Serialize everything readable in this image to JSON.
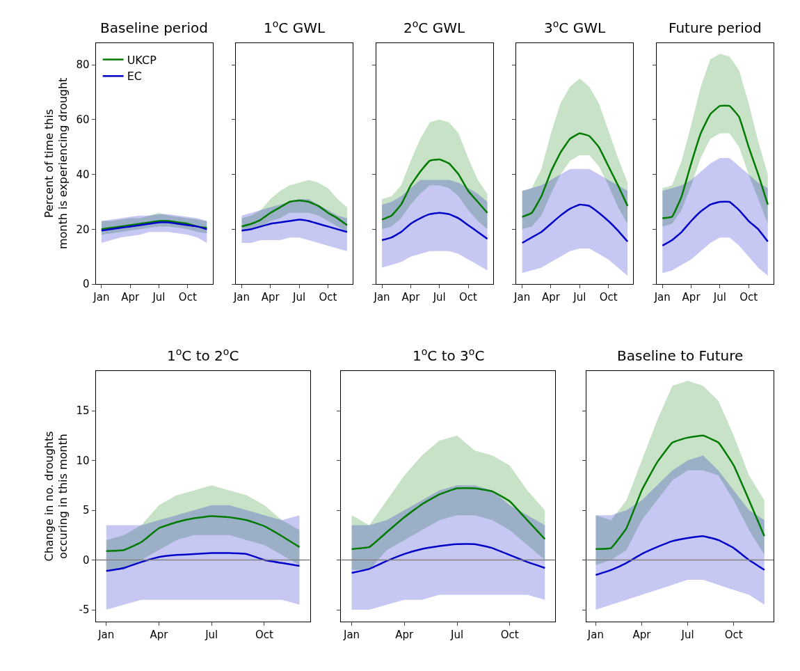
{
  "chart_data": [
    {
      "type": "line",
      "title": "Baseline period",
      "ylabel": "Percent of time this\nmonth is experiencing drought",
      "categories": [
        "Jan",
        null,
        null,
        "Apr",
        null,
        null,
        "Jul",
        null,
        null,
        "Oct",
        null,
        null
      ],
      "ylim": [
        0,
        88
      ],
      "yticks": [
        0,
        20,
        40,
        60,
        80
      ],
      "legend": "top left",
      "series": [
        {
          "name": "UKCP",
          "color": "#007a00",
          "values": [
            20,
            20.5,
            21,
            21.5,
            22,
            22.5,
            23,
            23,
            22.5,
            22,
            21,
            20.5
          ],
          "lower": [
            18,
            18.5,
            19,
            19.5,
            20,
            20.5,
            21,
            21,
            20.5,
            20,
            19,
            18.5
          ],
          "upper": [
            23,
            23,
            23.5,
            24,
            24,
            25,
            26,
            25,
            24.5,
            24,
            23.5,
            23
          ]
        },
        {
          "name": "EC",
          "color": "#0000c8",
          "values": [
            19.5,
            20,
            20.5,
            21,
            21.5,
            22,
            22.5,
            22.5,
            22,
            21.5,
            21,
            20
          ],
          "lower": [
            15,
            16,
            17,
            17.5,
            18,
            19,
            19,
            19,
            18.5,
            18,
            17,
            15
          ],
          "upper": [
            23,
            23.5,
            24,
            24.5,
            25,
            25,
            25.5,
            25.5,
            25,
            24.5,
            24,
            23
          ]
        }
      ]
    },
    {
      "type": "line",
      "title": "1$^{o}$C GWL",
      "categories": [
        "Jan",
        null,
        null,
        "Apr",
        null,
        null,
        "Jul",
        null,
        null,
        "Oct",
        null,
        null
      ],
      "ylim": [
        0,
        88
      ],
      "yticks": [
        0,
        20,
        40,
        60,
        80
      ],
      "tick_labels": "x",
      "series": [
        {
          "color": "#007a00",
          "values": [
            21,
            22,
            23.5,
            26,
            28,
            30,
            30.5,
            30,
            28.5,
            26,
            24,
            21.5
          ],
          "lower": [
            19,
            20,
            21,
            23,
            24,
            26,
            26,
            26,
            25,
            23,
            21,
            19
          ],
          "upper": [
            24,
            25,
            27,
            31,
            34,
            36,
            37,
            38,
            37,
            35,
            31,
            28
          ]
        },
        {
          "color": "#0000c8",
          "values": [
            19.5,
            20,
            21,
            22,
            22.5,
            23,
            23.5,
            23,
            22,
            21,
            20,
            19
          ],
          "lower": [
            15,
            15,
            16,
            16,
            16,
            17,
            17,
            16,
            15,
            14,
            13,
            12
          ],
          "upper": [
            25,
            26,
            27,
            28,
            29,
            30,
            31,
            31,
            29,
            27,
            25,
            24
          ]
        }
      ]
    },
    {
      "type": "line",
      "title": "2$^{o}$C GWL",
      "categories": [
        "Jan",
        null,
        null,
        "Apr",
        null,
        null,
        "Jul",
        null,
        null,
        "Oct",
        null,
        null
      ],
      "ylim": [
        0,
        88
      ],
      "yticks": [
        0,
        20,
        40,
        60,
        80
      ],
      "tick_labels": "x",
      "series": [
        {
          "color": "#007a00",
          "values": [
            23.5,
            25,
            29,
            36,
            41,
            45,
            45.5,
            44,
            40,
            34,
            30,
            26
          ],
          "lower": [
            20,
            21,
            24,
            29,
            33,
            36,
            36,
            35,
            32,
            27,
            23,
            20
          ],
          "upper": [
            31,
            32,
            36,
            45,
            53,
            59,
            60,
            59,
            55,
            46,
            38,
            33
          ]
        },
        {
          "color": "#0000c8",
          "values": [
            16,
            17,
            19,
            22,
            24,
            25.5,
            26,
            25.5,
            24,
            21.5,
            19,
            16.5
          ],
          "lower": [
            6,
            7,
            8,
            10,
            11,
            12,
            12,
            12,
            11,
            9,
            7,
            5
          ],
          "upper": [
            29,
            30,
            32,
            35,
            38,
            38,
            38,
            38,
            37,
            35,
            33,
            30
          ]
        }
      ]
    },
    {
      "type": "line",
      "title": "3$^{o}$C GWL",
      "categories": [
        "Jan",
        null,
        null,
        "Apr",
        null,
        null,
        "Jul",
        null,
        null,
        "Oct",
        null,
        null
      ],
      "ylim": [
        0,
        88
      ],
      "yticks": [
        0,
        20,
        40,
        60,
        80
      ],
      "tick_labels": "x",
      "series": [
        {
          "color": "#007a00",
          "values": [
            24.5,
            26,
            32,
            41,
            48,
            53,
            55,
            54,
            50,
            43,
            36,
            28.5
          ],
          "lower": [
            20,
            21,
            25,
            33,
            40,
            45,
            47,
            47,
            43,
            36,
            28,
            22
          ],
          "upper": [
            34,
            35,
            42,
            55,
            66,
            72,
            75,
            72,
            66,
            56,
            46,
            37
          ]
        },
        {
          "color": "#0000c8",
          "values": [
            15,
            17,
            19,
            22,
            25,
            27.5,
            29,
            28.5,
            26,
            23,
            19.5,
            15.5
          ],
          "lower": [
            4,
            5,
            6,
            8,
            10,
            12,
            13,
            13,
            11,
            9,
            6,
            3
          ],
          "upper": [
            34,
            35,
            36,
            38,
            40,
            42,
            42,
            42,
            40,
            38,
            36,
            34
          ]
        }
      ]
    },
    {
      "type": "line",
      "title": "Future period",
      "categories": [
        "Jan",
        null,
        null,
        "Apr",
        null,
        null,
        "Jul",
        null,
        null,
        "Oct",
        null,
        null
      ],
      "ylim": [
        0,
        88
      ],
      "yticks": [
        0,
        20,
        40,
        60,
        80
      ],
      "tick_labels": "x",
      "series": [
        {
          "color": "#007a00",
          "values": [
            24,
            24.5,
            32,
            44,
            55,
            62,
            65,
            65,
            61,
            50,
            40,
            29
          ],
          "lower": [
            21,
            22,
            27,
            36,
            46,
            53,
            55,
            55,
            50,
            40,
            31,
            22
          ],
          "upper": [
            35,
            36,
            45,
            58,
            72,
            82,
            84,
            83,
            78,
            66,
            52,
            40
          ]
        },
        {
          "color": "#0000c8",
          "values": [
            14,
            16,
            19,
            23,
            26.5,
            29,
            30,
            30,
            27,
            23,
            20,
            15.5
          ],
          "lower": [
            4,
            5,
            7,
            9,
            12,
            15,
            17,
            17,
            14,
            10,
            6,
            3
          ],
          "upper": [
            34,
            35,
            36,
            38,
            41,
            44,
            46,
            46,
            43,
            40,
            37,
            35
          ]
        }
      ]
    },
    {
      "type": "line",
      "title": "1$^{o}$C to 2$^{o}$C",
      "ylabel": "Change in no. droughts\noccuring in this month",
      "categories": [
        "Jan",
        null,
        null,
        "Apr",
        null,
        null,
        "Jul",
        null,
        null,
        "Oct",
        null,
        null
      ],
      "ylim": [
        -6.2,
        19
      ],
      "yticks": [
        -5,
        0,
        5,
        10,
        15
      ],
      "ref_lines": [
        {
          "axis": "y",
          "value": 0,
          "color": "#808080"
        }
      ],
      "series": [
        {
          "color": "#007a00",
          "values": [
            0.9,
            1,
            1.8,
            3.2,
            3.8,
            4.2,
            4.4,
            4.3,
            4,
            3.4,
            2.4,
            1.3
          ],
          "lower": [
            -1,
            -1,
            0,
            1,
            2,
            2.5,
            2.5,
            2.5,
            2,
            1.5,
            0.5,
            -0.5
          ],
          "upper": [
            2,
            2.5,
            3.5,
            5.5,
            6.5,
            7,
            7.5,
            7,
            6.5,
            5.5,
            4,
            3
          ]
        },
        {
          "color": "#0000c8",
          "values": [
            -1.1,
            -0.8,
            -0.2,
            0.3,
            0.5,
            0.6,
            0.7,
            0.7,
            0.6,
            0,
            -0.3,
            -0.6
          ],
          "lower": [
            -5,
            -4.5,
            -4,
            -4,
            -4,
            -4,
            -4,
            -4,
            -4,
            -4,
            -4,
            -4.5
          ],
          "upper": [
            3.5,
            3.5,
            3.5,
            4,
            4.5,
            5,
            5.5,
            5.5,
            5,
            4.5,
            4,
            4.5
          ]
        }
      ]
    },
    {
      "type": "line",
      "title": "1$^{o}$C to 3$^{o}$C",
      "categories": [
        "Jan",
        null,
        null,
        "Apr",
        null,
        null,
        "Jul",
        null,
        null,
        "Oct",
        null,
        null
      ],
      "ylim": [
        -6.2,
        19
      ],
      "yticks": [
        -5,
        0,
        5,
        10,
        15
      ],
      "tick_labels": "x",
      "ref_lines": [
        {
          "axis": "y",
          "value": 0,
          "color": "#808080"
        }
      ],
      "series": [
        {
          "color": "#007a00",
          "values": [
            1.1,
            1.3,
            2.8,
            4.3,
            5.6,
            6.6,
            7.2,
            7.2,
            6.9,
            5.9,
            4,
            2.1
          ],
          "lower": [
            -1,
            -1,
            1,
            2,
            3,
            4,
            4.5,
            4.5,
            4,
            3,
            1.5,
            0
          ],
          "upper": [
            4.5,
            3.5,
            6,
            8.5,
            10.5,
            12,
            12.5,
            11,
            10.5,
            9.5,
            7,
            5
          ]
        },
        {
          "color": "#0000c8",
          "values": [
            -1.3,
            -0.9,
            -0.1,
            0.6,
            1.1,
            1.4,
            1.6,
            1.6,
            1.2,
            0.5,
            -0.2,
            -0.8
          ],
          "lower": [
            -5,
            -5,
            -4.5,
            -4,
            -4,
            -3.5,
            -3.5,
            -3.5,
            -3.5,
            -3.5,
            -3.5,
            -4
          ],
          "upper": [
            3.5,
            3.5,
            4,
            5,
            6,
            7,
            7.5,
            7.5,
            7,
            5.5,
            4.5,
            3.5
          ]
        }
      ]
    },
    {
      "type": "line",
      "title": "Baseline to Future",
      "categories": [
        "Jan",
        null,
        null,
        "Apr",
        null,
        null,
        "Jul",
        null,
        null,
        "Oct",
        null,
        null
      ],
      "ylim": [
        -6.2,
        19
      ],
      "yticks": [
        -5,
        0,
        5,
        10,
        15
      ],
      "tick_labels": "x",
      "ref_lines": [
        {
          "axis": "y",
          "value": 0,
          "color": "#808080"
        }
      ],
      "series": [
        {
          "color": "#007a00",
          "values": [
            1.1,
            1.2,
            3.2,
            7,
            9.8,
            11.8,
            12.3,
            12.5,
            11.8,
            9.5,
            6,
            2.4
          ],
          "lower": [
            -0.5,
            0,
            1,
            4,
            6,
            8,
            9,
            9,
            8.5,
            6,
            3,
            0.5
          ],
          "upper": [
            4.5,
            4,
            6,
            10,
            14,
            17.5,
            18,
            17.5,
            16,
            12.5,
            8.5,
            6
          ]
        },
        {
          "color": "#0000c8",
          "values": [
            -1.5,
            -1,
            -0.3,
            0.6,
            1.3,
            1.9,
            2.2,
            2.4,
            2,
            1.2,
            0,
            -1
          ],
          "lower": [
            -5,
            -4.5,
            -4,
            -3.5,
            -3,
            -2.5,
            -2,
            -2,
            -2.5,
            -3,
            -3.5,
            -4.5
          ],
          "upper": [
            4.5,
            4.5,
            5,
            6,
            7.5,
            9,
            10,
            10.5,
            9,
            7,
            5,
            4
          ]
        }
      ]
    }
  ]
}
